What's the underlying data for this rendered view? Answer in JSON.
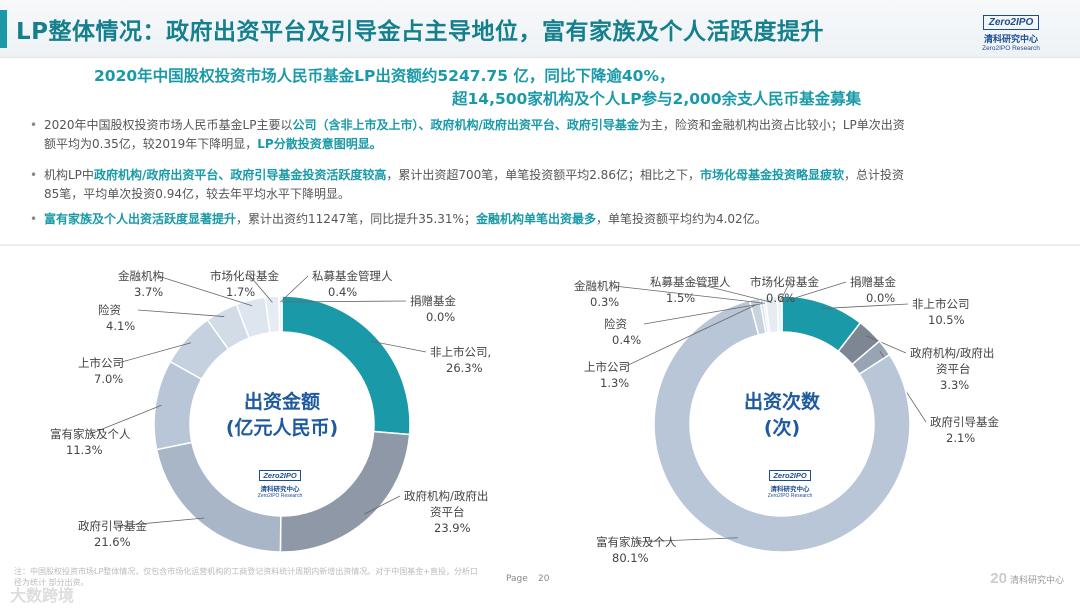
{
  "header": {
    "title": "LP整体情况：政府出资平台及引导金占主导地位，富有家族及个人活跃度提升",
    "logo": {
      "brand": "Zero2IPO",
      "cn": "清科研究中心",
      "en": "Zero2IPO Research"
    }
  },
  "headline": {
    "line1": "2020年中国股权投资市场人民币基金LP出资额约5247.75 亿，同比下降逾40%，",
    "line2": "超14,500家机构及个人LP参与2,000余支人民币基金募集"
  },
  "bullets": [
    {
      "lines": [
        [
          {
            "t": "2020年中国股权投资市场人民币基金LP主要以"
          },
          {
            "t": "公司（含非上市及上市）、政府机构/政府出资平台、政府引导基金",
            "h": true
          },
          {
            "t": "为主，险资和金融机构出资占比较小；LP单次出资"
          }
        ],
        [
          {
            "t": "额平均为0.35亿，较2019年下降明显，"
          },
          {
            "t": "LP分散投资意图明显。",
            "h": true
          }
        ]
      ]
    },
    {
      "lines": [
        [
          {
            "t": "机构LP中"
          },
          {
            "t": "政府机构/政府出资平台、政府引导基金投资活跃度较高",
            "h": true
          },
          {
            "t": "，累计出资超700笔，单笔投资额平均2.86亿；相比之下，"
          },
          {
            "t": "市场化母基金投资略显疲软",
            "h": true
          },
          {
            "t": "，总计投资"
          }
        ],
        [
          {
            "t": "85笔，平均单次投资0.94亿，较去年平均水平下降明显。"
          }
        ]
      ]
    },
    {
      "lines": [
        [
          {
            "t": "富有家族及个人出资活跃度显著提升",
            "h": true
          },
          {
            "t": "，累计出资约11247笔，同比提升35.31%；"
          },
          {
            "t": "金融机构单笔出资最多",
            "h": true
          },
          {
            "t": "，单笔投资额平均约为4.02亿。"
          }
        ]
      ]
    }
  ],
  "chart_data": [
    {
      "type": "pie",
      "donut": true,
      "title": "出资金额\n(亿元人民币)",
      "slices": [
        {
          "name": "非上市公司",
          "value": 26.3,
          "label": "非上市公司,",
          "pct": "26.3%",
          "color": "#1a9aa8"
        },
        {
          "name": "政府机构/政府出资平台",
          "value": 23.9,
          "label": "政府机构/政府出\n资平台",
          "pct": "23.9%",
          "color": "#8e98a7"
        },
        {
          "name": "政府引导基金",
          "value": 21.6,
          "label": "政府引导基金",
          "pct": "21.6%",
          "color": "#a9b6c8"
        },
        {
          "name": "富有家族及个人",
          "value": 11.3,
          "label": "富有家族及个人",
          "pct": "11.3%",
          "color": "#b8c6d8"
        },
        {
          "name": "上市公司",
          "value": 7.0,
          "label": "上市公司",
          "pct": "7.0%",
          "color": "#c5d1df"
        },
        {
          "name": "险资",
          "value": 4.1,
          "label": "险资",
          "pct": "4.1%",
          "color": "#d2dce7"
        },
        {
          "name": "金融机构",
          "value": 3.7,
          "label": "金融机构",
          "pct": "3.7%",
          "color": "#dde5ee"
        },
        {
          "name": "市场化母基金",
          "value": 1.7,
          "label": "市场化母基金",
          "pct": "1.7%",
          "color": "#e6ecf2"
        },
        {
          "name": "私募基金管理人",
          "value": 0.4,
          "label": "私募基金管理人",
          "pct": "0.4%",
          "color": "#eef2f6"
        },
        {
          "name": "捐赠基金",
          "value": 0.0,
          "label": "捐赠基金",
          "pct": "0.0%",
          "color": "#f3f6f9"
        }
      ]
    },
    {
      "type": "pie",
      "donut": true,
      "title": "出资次数\n(次)",
      "slices": [
        {
          "name": "非上市公司",
          "value": 10.5,
          "label": "非上市公司",
          "pct": "10.5%",
          "color": "#1a9aa8"
        },
        {
          "name": "政府机构/政府出资平台",
          "value": 3.3,
          "label": "政府机构/政府出\n资平台",
          "pct": "3.3%",
          "color": "#7d8794"
        },
        {
          "name": "政府引导基金",
          "value": 2.1,
          "label": "政府引导基金",
          "pct": "2.1%",
          "color": "#98a4b3"
        },
        {
          "name": "富有家族及个人",
          "value": 80.1,
          "label": "富有家族及个人",
          "pct": "80.1%",
          "color": "#b8c6d8"
        },
        {
          "name": "上市公司",
          "value": 1.3,
          "label": "上市公司",
          "pct": "1.3%",
          "color": "#c8d3e0"
        },
        {
          "name": "险资",
          "value": 0.4,
          "label": "险资",
          "pct": "0.4%",
          "color": "#d4dde8"
        },
        {
          "name": "金融机构",
          "value": 0.3,
          "label": "金融机构",
          "pct": "0.3%",
          "color": "#dde5ee"
        },
        {
          "name": "私募基金管理人",
          "value": 1.5,
          "label": "私募基金管理人",
          "pct": "1.5%",
          "color": "#e6ecf2"
        },
        {
          "name": "市场化母基金",
          "value": 0.6,
          "label": "市场化母基金",
          "pct": "0.6%",
          "color": "#eef2f6"
        },
        {
          "name": "捐赠基金",
          "value": 0.0,
          "label": "捐赠基金",
          "pct": "0.0%",
          "color": "#f3f6f9"
        }
      ]
    }
  ],
  "footer": {
    "note": "注：中国股权投资市场LP整体情况，仅包含市场化运营机构的工商登记资料统计周期内新增出资情况。对于中国基金+直投，分析口径为统计 部分出资。",
    "page_label": "Page",
    "page_number": "20",
    "brand": "清科研究中心",
    "watermark": "大数跨境"
  }
}
